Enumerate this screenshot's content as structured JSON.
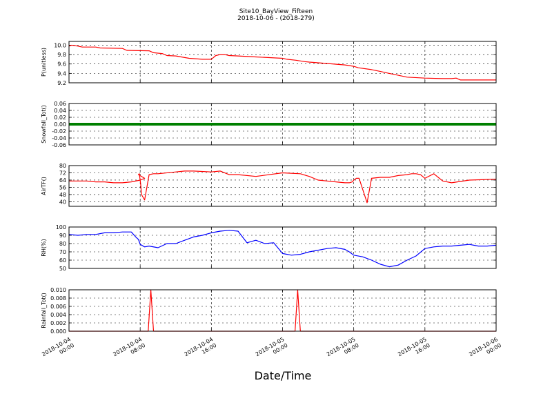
{
  "figure": {
    "title": "Site10_BayView_Fifteen",
    "subtitle": "2018-10-06 - (2018-279)",
    "xlabel": "Date/Time"
  },
  "colors": {
    "red": "#ff0000",
    "green": "#008000",
    "blue": "#0000ff"
  },
  "x_ticks": [
    {
      "line1": "2018-10-04",
      "line2": "00:00"
    },
    {
      "line1": "2018-10-04",
      "line2": "08:00"
    },
    {
      "line1": "2018-10-04",
      "line2": "16:00"
    },
    {
      "line1": "2018-10-05",
      "line2": "00:00"
    },
    {
      "line1": "2018-10-05",
      "line2": "08:00"
    },
    {
      "line1": "2018-10-05",
      "line2": "16:00"
    },
    {
      "line1": "2018-10-06",
      "line2": "00:00"
    }
  ],
  "chart_data": [
    {
      "type": "line",
      "ylabel": "P(unitless)",
      "color": "#ff0000",
      "ylim": [
        9.2,
        10.08
      ],
      "yticks": [
        "9.2",
        "9.4",
        "9.6",
        "9.8",
        "10.0"
      ],
      "x_range_hours": [
        0,
        48
      ],
      "x": [
        0,
        0.3,
        1,
        1.5,
        3,
        3.5,
        6,
        6.5,
        9,
        9.5,
        10.5,
        11,
        12,
        13.5,
        15,
        16,
        16.5,
        17,
        17.5,
        18,
        19,
        21,
        24,
        24.5,
        25.5,
        26.5,
        27,
        29,
        31,
        32,
        32.5,
        34,
        35,
        36,
        37,
        38,
        40,
        42,
        43,
        43.5,
        44,
        45,
        48
      ],
      "y": [
        9.98,
        10.0,
        9.98,
        9.96,
        9.96,
        9.94,
        9.93,
        9.89,
        9.88,
        9.84,
        9.82,
        9.78,
        9.77,
        9.72,
        9.7,
        9.7,
        9.78,
        9.8,
        9.8,
        9.78,
        9.77,
        9.75,
        9.72,
        9.7,
        9.68,
        9.65,
        9.64,
        9.61,
        9.58,
        9.55,
        9.52,
        9.48,
        9.44,
        9.4,
        9.36,
        9.32,
        9.3,
        9.29,
        9.29,
        9.3,
        9.26,
        9.26,
        9.26
      ]
    },
    {
      "type": "line",
      "ylabel": "Snowfall_Tot()",
      "color": "#008000",
      "ylim": [
        -0.06,
        0.06
      ],
      "yticks": [
        "-0.06",
        "-0.04",
        "-0.02",
        "0.00",
        "0.02",
        "0.04",
        "0.06"
      ],
      "x_range_hours": [
        0,
        48
      ],
      "x": [
        0,
        48
      ],
      "y": [
        0,
        0
      ]
    },
    {
      "type": "line",
      "ylabel": "AirTF()",
      "color": "#ff0000",
      "ylim": [
        35,
        80
      ],
      "yticks": [
        "40",
        "48",
        "56",
        "64",
        "72",
        "80"
      ],
      "x_range_hours": [
        0,
        48
      ],
      "x": [
        0,
        2,
        3,
        4,
        5,
        6,
        7,
        8,
        8.5,
        7.8,
        7.9,
        8.05,
        8.15,
        8.5,
        9,
        9.5,
        10,
        12,
        13,
        14,
        16,
        17,
        18,
        19,
        21,
        24,
        26,
        27,
        28,
        29,
        30,
        31,
        31.5,
        31.85,
        32,
        32.3,
        32.6,
        33.5,
        34,
        35,
        36,
        37,
        38,
        38.5,
        39,
        39.5,
        40,
        41,
        42,
        43,
        45,
        48
      ],
      "y": [
        63,
        63,
        62,
        62,
        61,
        61,
        62,
        64,
        66,
        70,
        71,
        60,
        48,
        42,
        70,
        71,
        71,
        73,
        74,
        74,
        73,
        74,
        70,
        70,
        68,
        72,
        71,
        68,
        64,
        63,
        62,
        61,
        61,
        62,
        64,
        66,
        66,
        39,
        66,
        67,
        67,
        69,
        70,
        71,
        71,
        70,
        66,
        71,
        63,
        61,
        64,
        65
      ],
      "sort": false
    },
    {
      "type": "line",
      "ylabel": "RH(%)",
      "color": "#0000ff",
      "ylim": [
        50,
        100
      ],
      "yticks": [
        "50",
        "60",
        "70",
        "80",
        "90",
        "100"
      ],
      "x_range_hours": [
        0,
        48
      ],
      "x": [
        0,
        1,
        2,
        3,
        4,
        5,
        6,
        7,
        7.5,
        7.8,
        8,
        8.5,
        9,
        10,
        11,
        12,
        13,
        14,
        15,
        16,
        17,
        18,
        19,
        20,
        21,
        22,
        23,
        24,
        25,
        26,
        27,
        28,
        29,
        30,
        31,
        31.5,
        32,
        33,
        34,
        35,
        36,
        37,
        38,
        39,
        40,
        41,
        42,
        43,
        44,
        45,
        46,
        47,
        48
      ],
      "y": [
        91,
        90,
        91,
        91,
        93,
        93,
        94,
        94,
        88,
        85,
        79,
        76,
        77,
        75,
        80,
        80,
        84,
        88,
        90,
        93,
        95,
        96,
        95,
        81,
        84,
        80,
        81,
        68,
        66,
        67,
        70,
        72,
        74,
        75,
        73,
        70,
        66,
        64,
        60,
        55,
        52,
        54,
        60,
        65,
        74,
        76,
        77,
        77,
        78,
        79,
        77,
        77,
        78
      ]
    },
    {
      "type": "line",
      "ylabel": "Rainfall_Tot()",
      "color": "#ff0000",
      "ylim": [
        0,
        0.01
      ],
      "yticks": [
        "0.000",
        "0.002",
        "0.004",
        "0.006",
        "0.008",
        "0.010"
      ],
      "x_range_hours": [
        0,
        48
      ],
      "x": [
        0,
        8.9,
        9.2,
        9.5,
        25.4,
        25.7,
        26.0,
        48
      ],
      "y": [
        0,
        0,
        0.01,
        0,
        0,
        0.01,
        0,
        0
      ]
    }
  ]
}
